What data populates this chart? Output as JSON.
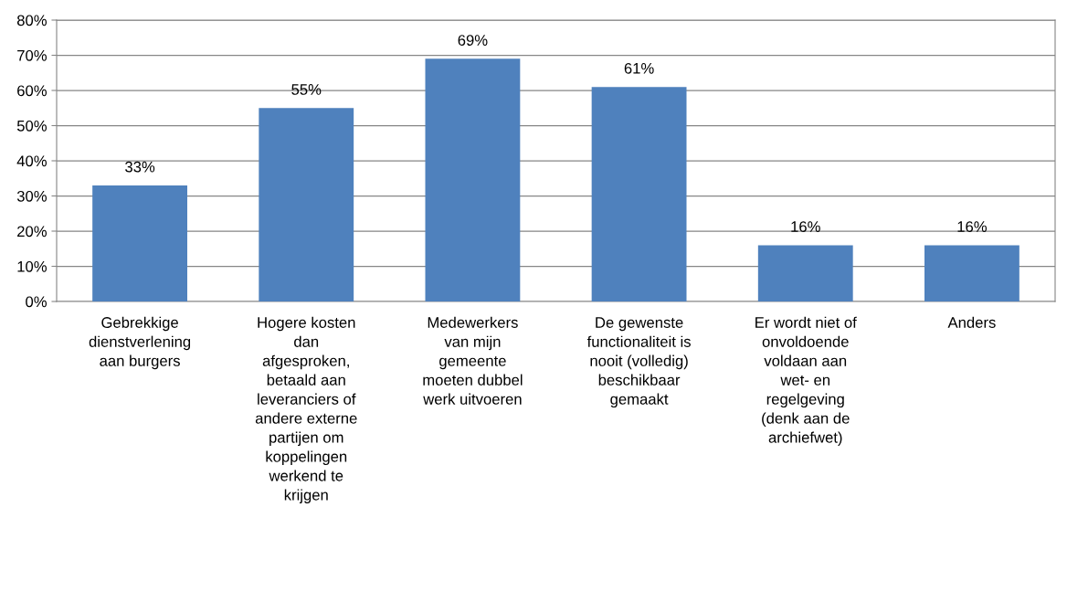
{
  "chart_data": {
    "type": "bar",
    "categories": [
      "Gebrekkige\ndienstverlening\naan burgers",
      "Hogere kosten\ndan\nafgesproken,\nbetaald aan\nleveranciers of\nandere externe\npartijen om\nkoppelingen\nwerkend te\nkrijgen",
      "Medewerkers\nvan mijn\ngemeente\nmoeten dubbel\nwerk uitvoeren",
      "De gewenste\nfunctionaliteit is\nnooit (volledig)\nbeschikbaar\ngemaakt",
      "Er wordt niet of\nonvoldoende\nvoldaan aan\nwet- en\nregelgeving\n(denk aan de\narchiefwet)",
      "Anders"
    ],
    "values": [
      33,
      55,
      69,
      61,
      16,
      16
    ],
    "value_labels": [
      "33%",
      "55%",
      "69%",
      "61%",
      "16%",
      "16%"
    ],
    "color": "#4f81bd",
    "ylim": [
      0,
      80
    ],
    "yticks": [
      {
        "value": 0,
        "label": "0%"
      },
      {
        "value": 10,
        "label": "10%"
      },
      {
        "value": 20,
        "label": "20%"
      },
      {
        "value": 30,
        "label": "30%"
      },
      {
        "value": 40,
        "label": "40%"
      },
      {
        "value": 50,
        "label": "50%"
      },
      {
        "value": 60,
        "label": "60%"
      },
      {
        "value": 70,
        "label": "70%"
      },
      {
        "value": 80,
        "label": "80%"
      }
    ],
    "grid": "y",
    "legend": false
  }
}
